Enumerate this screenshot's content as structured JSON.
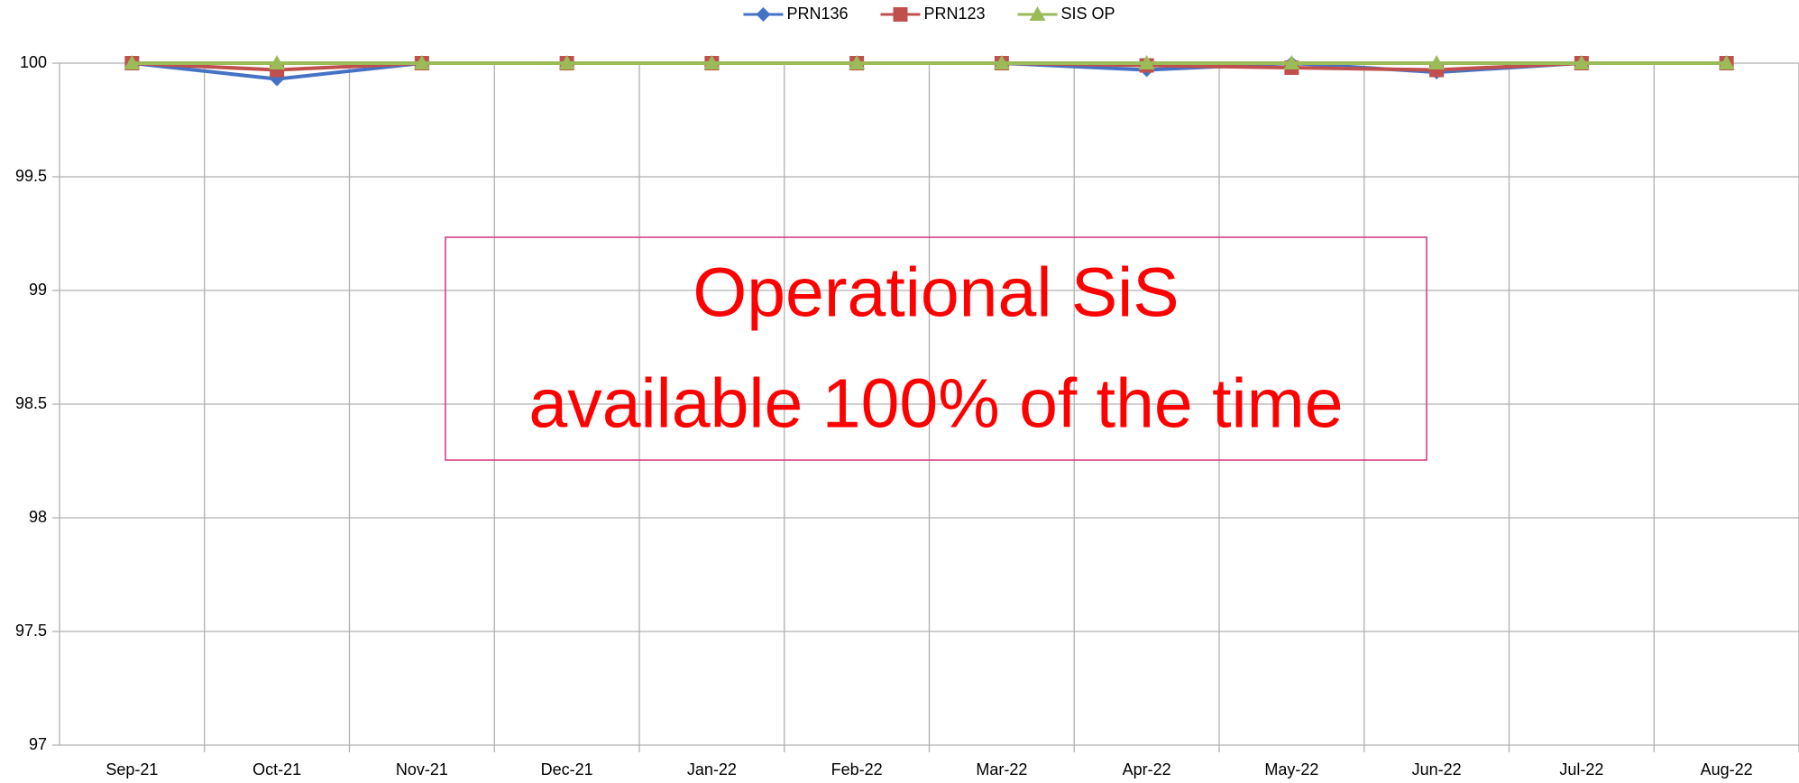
{
  "chart_data": {
    "type": "line",
    "categories": [
      "Sep-21",
      "Oct-21",
      "Nov-21",
      "Dec-21",
      "Jan-22",
      "Feb-22",
      "Mar-22",
      "Apr-22",
      "May-22",
      "Jun-22",
      "Jul-22",
      "Aug-22"
    ],
    "series": [
      {
        "name": "PRN136",
        "color": "#4472c4",
        "marker": "diamond",
        "values": [
          100,
          99.93,
          100,
          100,
          100,
          100,
          100,
          99.97,
          100,
          99.96,
          100,
          100
        ]
      },
      {
        "name": "PRN123",
        "color": "#c0504d",
        "marker": "square",
        "values": [
          100,
          99.97,
          100,
          100,
          100,
          100,
          100,
          99.99,
          99.98,
          99.97,
          100,
          100
        ]
      },
      {
        "name": "SIS OP",
        "color": "#9bbb59",
        "marker": "triangle",
        "values": [
          100,
          100,
          100,
          100,
          100,
          100,
          100,
          100,
          100,
          100,
          100,
          100
        ]
      }
    ],
    "ylim": [
      97,
      100
    ],
    "yticks": [
      97,
      97.5,
      98,
      98.5,
      99,
      99.5,
      100
    ],
    "grid": true,
    "legend": "top",
    "annotation": [
      "Operational SiS",
      "available 100% of the time"
    ],
    "annotation_color": "#ff0000",
    "annotation_border": "#d6337f"
  }
}
